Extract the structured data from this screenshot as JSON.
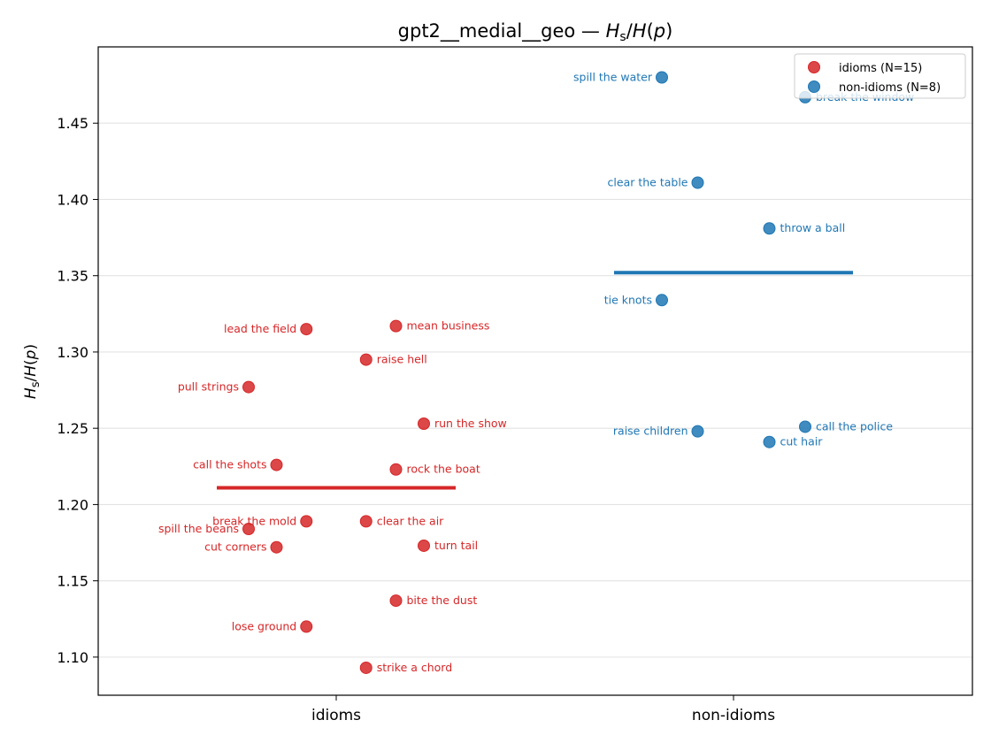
{
  "chart_data": {
    "type": "scatter",
    "title": "gpt2__medial__geo — H_s/H(p)",
    "ylabel": "H_s/H(p)",
    "xlabel": "",
    "categories": [
      "idioms",
      "non-idioms"
    ],
    "ylim": [
      1.075,
      1.5
    ],
    "yticks": [
      "1.10",
      "1.15",
      "1.20",
      "1.25",
      "1.30",
      "1.35",
      "1.40",
      "1.45"
    ],
    "grid": "y",
    "legend_position": "top-right",
    "series": [
      {
        "name": "idioms (N=15)",
        "color": "#d62728",
        "mean": 1.211,
        "points": [
          {
            "label": "lead the field",
            "x": -0.075,
            "y": 1.315
          },
          {
            "label": "mean business",
            "x": 0.15,
            "y": 1.317
          },
          {
            "label": "raise hell",
            "x": 0.075,
            "y": 1.295
          },
          {
            "label": "pull strings",
            "x": -0.22,
            "y": 1.277
          },
          {
            "label": "run the show",
            "x": 0.22,
            "y": 1.253
          },
          {
            "label": "call the shots",
            "x": -0.15,
            "y": 1.226
          },
          {
            "label": "rock the boat",
            "x": 0.15,
            "y": 1.223
          },
          {
            "label": "break the mold",
            "x": -0.075,
            "y": 1.189
          },
          {
            "label": "clear the air",
            "x": 0.075,
            "y": 1.189
          },
          {
            "label": "spill the beans",
            "x": -0.22,
            "y": 1.184
          },
          {
            "label": "cut corners",
            "x": -0.15,
            "y": 1.172
          },
          {
            "label": "turn tail",
            "x": 0.22,
            "y": 1.173
          },
          {
            "label": "bite the dust",
            "x": 0.15,
            "y": 1.137
          },
          {
            "label": "lose ground",
            "x": -0.075,
            "y": 1.12
          },
          {
            "label": "strike a chord",
            "x": 0.075,
            "y": 1.093
          }
        ]
      },
      {
        "name": "non-idioms (N=8)",
        "color": "#1f77b4",
        "mean": 1.352,
        "points": [
          {
            "label": "spill the water",
            "x": -0.18,
            "y": 1.48
          },
          {
            "label": "break the window",
            "x": 0.18,
            "y": 1.467
          },
          {
            "label": "clear the table",
            "x": -0.09,
            "y": 1.411
          },
          {
            "label": "throw a ball",
            "x": 0.09,
            "y": 1.381
          },
          {
            "label": "tie knots",
            "x": -0.18,
            "y": 1.334
          },
          {
            "label": "raise children",
            "x": -0.09,
            "y": 1.248
          },
          {
            "label": "call the police",
            "x": 0.18,
            "y": 1.251
          },
          {
            "label": "cut hair",
            "x": 0.09,
            "y": 1.241
          }
        ]
      }
    ]
  }
}
